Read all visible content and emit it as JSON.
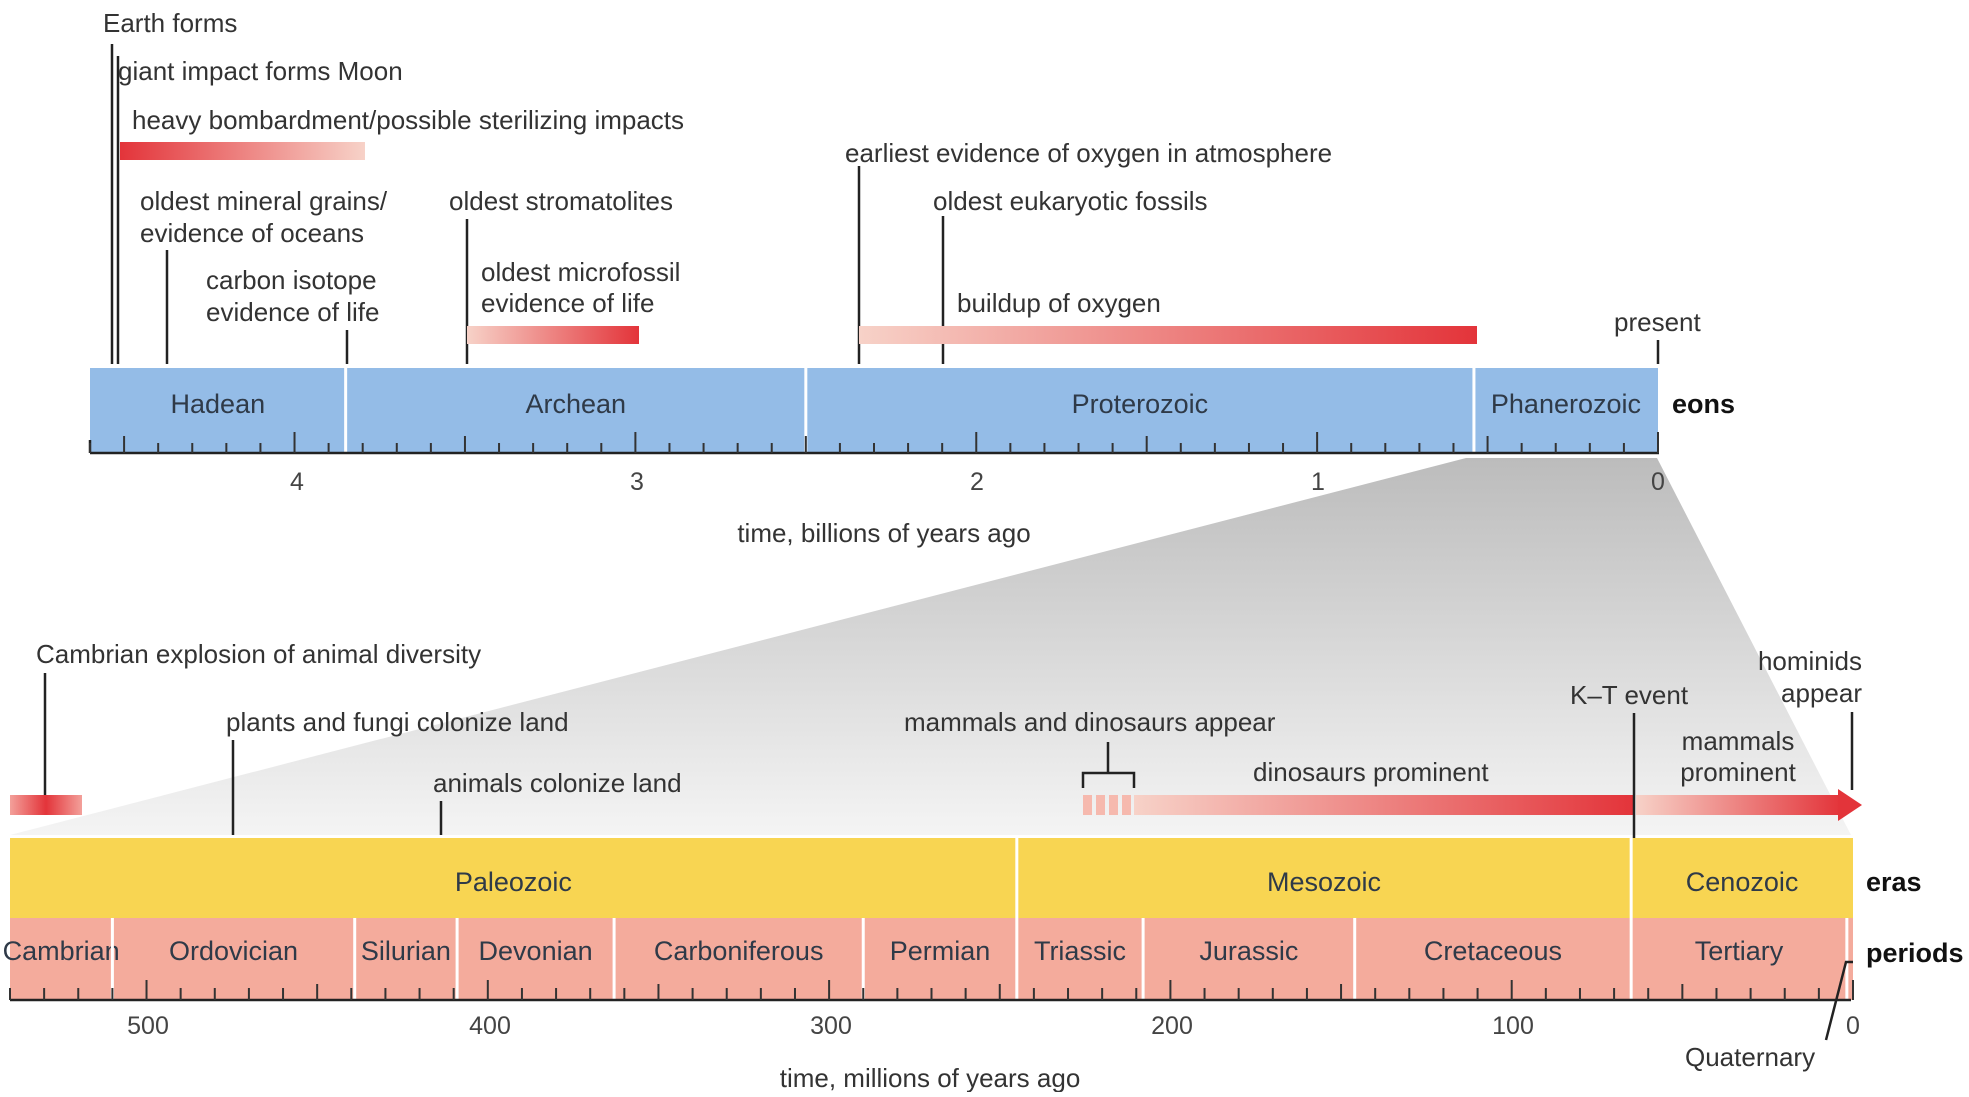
{
  "colors": {
    "eon_fill": "#94bce7",
    "era_fill": "#f8d552",
    "period_fill": "#f4ab9c",
    "bar_red": "#e3343a",
    "bar_light": "#f7cfc4",
    "zoom_grey": "#d4d4d4"
  },
  "top": {
    "xlabel": "time, billions of years ago",
    "row_label": "eons",
    "present_label": "present",
    "ticks": [
      "4",
      "3",
      "2",
      "1",
      "0"
    ],
    "eons": [
      {
        "name": "Hadean",
        "start_bya": 4.6,
        "end_bya": 3.85
      },
      {
        "name": "Archean",
        "start_bya": 3.85,
        "end_bya": 2.5
      },
      {
        "name": "Proterozoic",
        "start_bya": 2.5,
        "end_bya": 0.54
      },
      {
        "name": "Phanerozoic",
        "start_bya": 0.54,
        "end_bya": 0
      }
    ],
    "events": [
      {
        "id": "earth-forms",
        "text": "Earth forms",
        "bya": 4.6
      },
      {
        "id": "moon",
        "text": "giant impact forms Moon",
        "bya": 4.55
      },
      {
        "id": "bombardment",
        "text": "heavy bombardment/possible sterilizing impacts",
        "start_bya": 4.55,
        "end_bya": 3.83
      },
      {
        "id": "mineral-grains",
        "lines": [
          "oldest mineral grains/",
          "evidence of oceans"
        ],
        "bya": 4.4
      },
      {
        "id": "carbon-isotope",
        "lines": [
          "carbon isotope",
          "evidence of life"
        ],
        "bya": 3.85
      },
      {
        "id": "stromatolites",
        "text": "oldest stromatolites",
        "bya": 3.5
      },
      {
        "id": "microfossil",
        "lines": [
          "oldest microfossil",
          "evidence of life"
        ],
        "start_bya": 3.5,
        "end_bya": 3.0
      },
      {
        "id": "oxygen-atmosphere",
        "text": "earliest evidence of oxygen in atmosphere",
        "bya": 2.35
      },
      {
        "id": "eukaryotic",
        "text": "oldest eukaryotic fossils",
        "bya": 2.1
      },
      {
        "id": "oxygen-buildup",
        "text": "buildup of oxygen",
        "start_bya": 2.35,
        "end_bya": 0.55
      }
    ]
  },
  "bottom": {
    "xlabel": "time, millions of years ago",
    "eras_label": "eras",
    "periods_label": "periods",
    "quaternary_label": "Quaternary",
    "ticks": [
      "500",
      "400",
      "300",
      "200",
      "100",
      "0"
    ],
    "eras": [
      {
        "name": "Paleozoic",
        "start_mya": 540,
        "end_mya": 245
      },
      {
        "name": "Mesozoic",
        "start_mya": 245,
        "end_mya": 65
      },
      {
        "name": "Cenozoic",
        "start_mya": 65,
        "end_mya": 0
      }
    ],
    "periods": [
      {
        "name": "Cambrian",
        "start_mya": 540,
        "end_mya": 510
      },
      {
        "name": "Ordovician",
        "start_mya": 510,
        "end_mya": 439
      },
      {
        "name": "Silurian",
        "start_mya": 439,
        "end_mya": 409
      },
      {
        "name": "Devonian",
        "start_mya": 409,
        "end_mya": 363
      },
      {
        "name": "Carboniferous",
        "start_mya": 363,
        "end_mya": 290
      },
      {
        "name": "Permian",
        "start_mya": 290,
        "end_mya": 245
      },
      {
        "name": "Triassic",
        "start_mya": 245,
        "end_mya": 208
      },
      {
        "name": "Jurassic",
        "start_mya": 208,
        "end_mya": 146
      },
      {
        "name": "Cretaceous",
        "start_mya": 146,
        "end_mya": 65
      },
      {
        "name": "Tertiary",
        "start_mya": 65,
        "end_mya": 1.8
      }
    ],
    "events": [
      {
        "id": "cambrian-explosion",
        "text": "Cambrian explosion of animal diversity",
        "start_mya": 540,
        "end_mya": 520
      },
      {
        "id": "plants-fungi",
        "text": "plants and fungi colonize land",
        "mya": 475
      },
      {
        "id": "animals-land",
        "text": "animals colonize land",
        "mya": 415
      },
      {
        "id": "mammals-dinos-appear",
        "text": "mammals and dinosaurs appear",
        "start_mya": 225,
        "end_mya": 210
      },
      {
        "id": "dinosaurs-prominent",
        "text": "dinosaurs prominent",
        "start_mya": 225,
        "end_mya": 65
      },
      {
        "id": "kt-event",
        "text": "K–T event",
        "mya": 65
      },
      {
        "id": "mammals-prominent",
        "lines": [
          "mammals",
          "prominent"
        ],
        "start_mya": 65,
        "end_mya": 0
      },
      {
        "id": "hominids",
        "lines": [
          "hominids",
          "appear"
        ],
        "mya": 0
      }
    ]
  }
}
